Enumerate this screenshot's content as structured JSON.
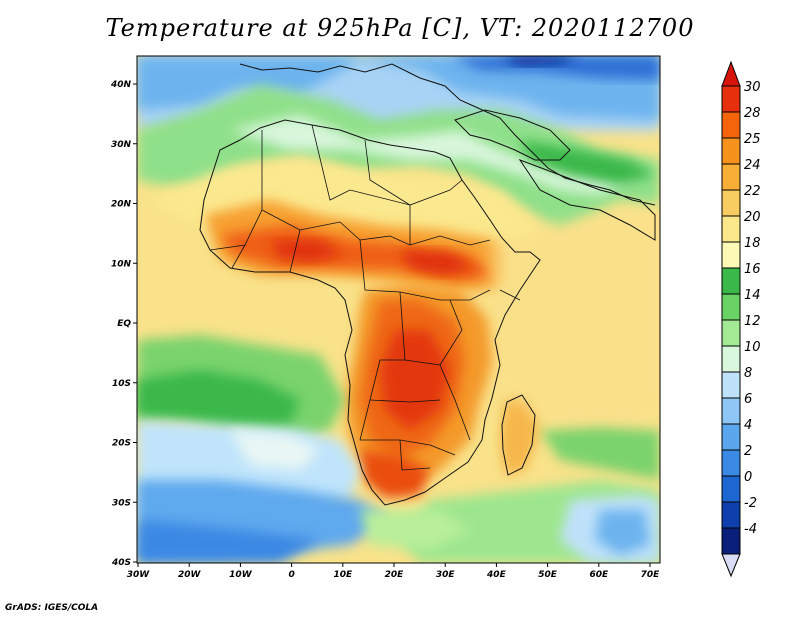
{
  "title": "Temperature at 925hPa [C], VT: 2020112700",
  "credit": "GrADS: IGES/COLA",
  "map": {
    "lon_labels": [
      "30W",
      "20W",
      "10W",
      "0",
      "10E",
      "20E",
      "30E",
      "40E",
      "50E",
      "60E",
      "70E"
    ],
    "lat_labels": [
      "40N",
      "30N",
      "20N",
      "10N",
      "EQ",
      "10S",
      "20S",
      "30S",
      "40S"
    ]
  },
  "colorbar": {
    "levels": [
      "30",
      "28",
      "25",
      "24",
      "22",
      "20",
      "18",
      "16",
      "14",
      "12",
      "10",
      "8",
      "6",
      "4",
      "2",
      "0",
      "-2",
      "-4"
    ],
    "colors": [
      "#e62f0c",
      "#f5640a",
      "#f7921c",
      "#f8af38",
      "#f7cc61",
      "#fbe88b",
      "#fcf9b6",
      "#3bb84a",
      "#6ad366",
      "#a3ea94",
      "#d9f7dd",
      "#bfe1fa",
      "#8ec6f5",
      "#5ba7ee",
      "#3a89e4",
      "#1e66d1",
      "#0e3fac",
      "#0a1f7a"
    ],
    "top_triangle_color": "#d7140a",
    "bottom_triangle_color": "#d9dcf5"
  }
}
